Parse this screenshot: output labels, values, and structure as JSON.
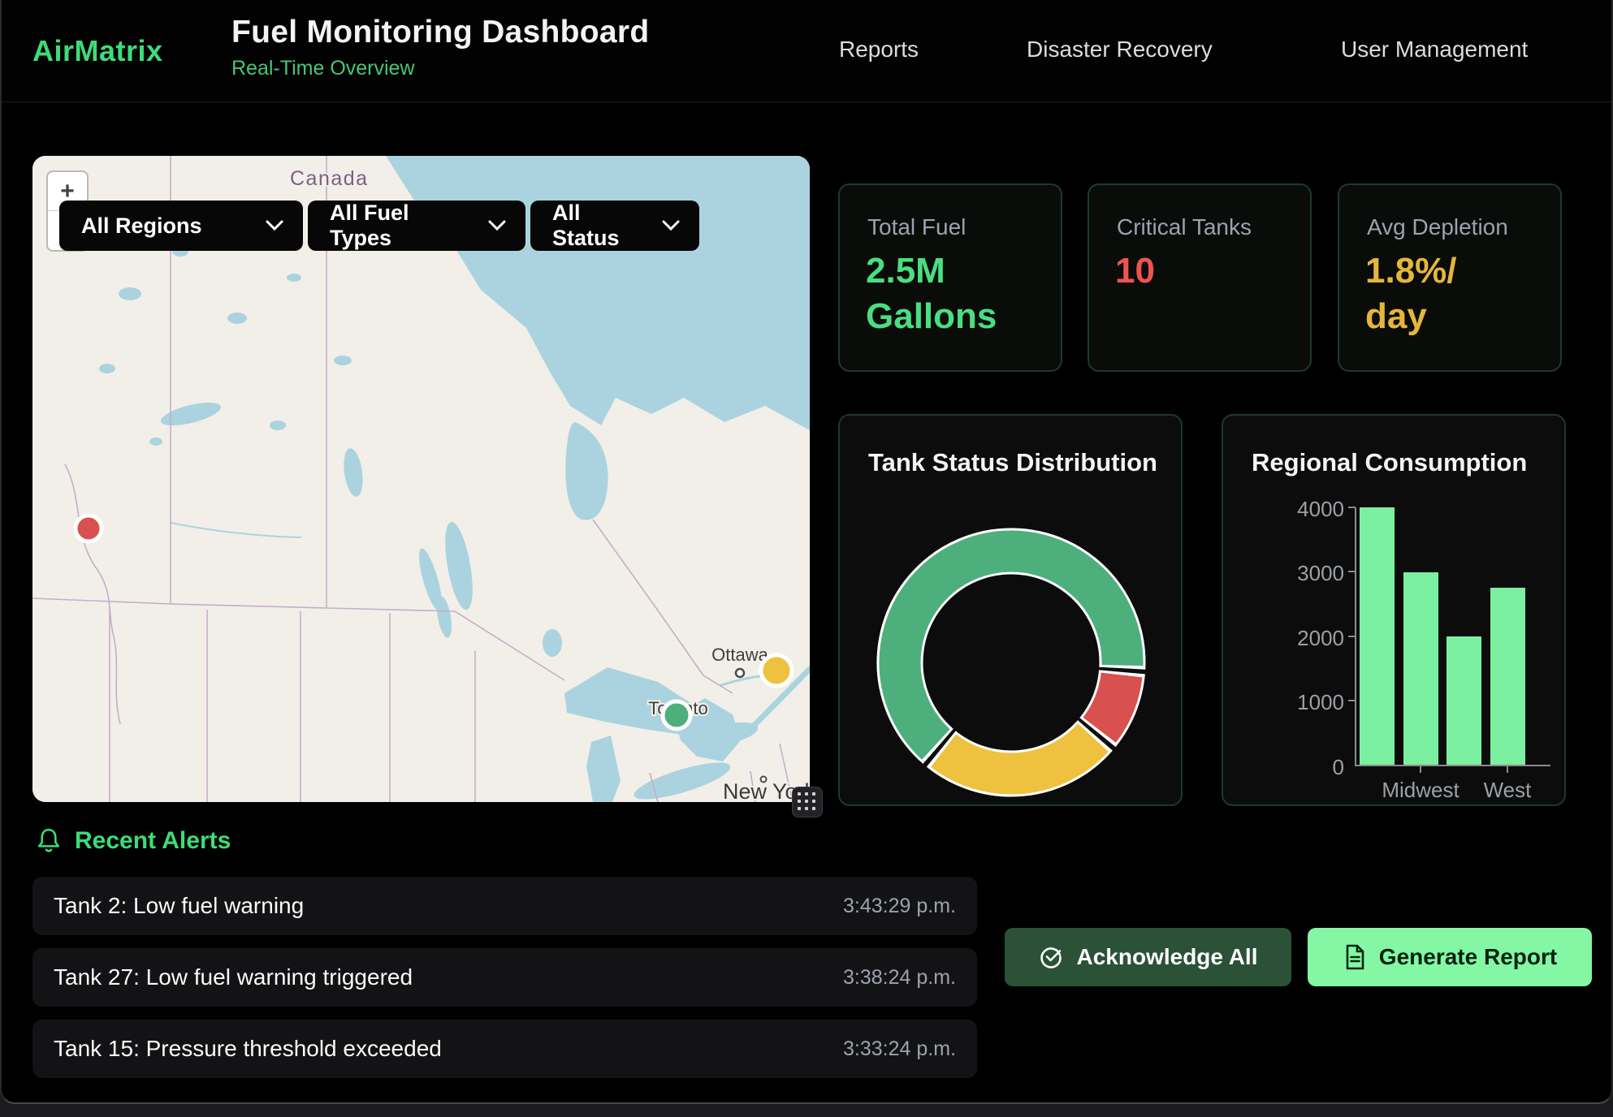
{
  "header": {
    "brand": "AirMatrix",
    "title": "Fuel Monitoring Dashboard",
    "subtitle": "Real-Time Overview",
    "nav": [
      {
        "label": "Reports"
      },
      {
        "label": "Disaster Recovery"
      },
      {
        "label": "User Management"
      }
    ]
  },
  "map": {
    "filters": [
      {
        "value": "All Regions"
      },
      {
        "value": "All Fuel Types"
      },
      {
        "value": "All Status"
      }
    ],
    "zoom_in": "+",
    "zoom_out": "−",
    "labels": {
      "country": "Canada",
      "cities": [
        "Ottawa",
        "Toronto",
        "New York"
      ]
    },
    "markers": [
      {
        "status": "critical",
        "color": "#d95050"
      },
      {
        "status": "warning",
        "color": "#eec23e"
      },
      {
        "status": "normal",
        "color": "#4daf7c"
      }
    ]
  },
  "stats": [
    {
      "label": "Total Fuel",
      "value": "2.5M Gallons",
      "color": "#4ade80"
    },
    {
      "label": "Critical Tanks",
      "value": "10",
      "color": "#ef5350"
    },
    {
      "label": "Avg Depletion",
      "value": "1.8%/ day",
      "color": "#e5b63c"
    }
  ],
  "chart_data": [
    {
      "type": "pie",
      "title": "Tank Status Distribution",
      "legend": "none",
      "donut": true,
      "start_angle_deg": 220,
      "series": [
        {
          "name": "normal",
          "value": 65,
          "color": "#4daf7c"
        },
        {
          "name": "critical",
          "value": 10,
          "color": "#d95050"
        },
        {
          "name": "warning",
          "value": 25,
          "color": "#eec23e"
        }
      ]
    },
    {
      "type": "bar",
      "title": "Regional Consumption",
      "values": [
        4000,
        3000,
        2000,
        2750
      ],
      "visible_xtick_labels": [
        "Midwest",
        "West"
      ],
      "yticks": [
        "4000",
        "3000",
        "2000",
        "1000",
        "0"
      ],
      "ylim": [
        0,
        4000
      ],
      "bar_color": "#7bf0a0",
      "grid": "off"
    }
  ],
  "alerts": {
    "title": "Recent Alerts",
    "items": [
      {
        "message": "Tank 2: Low fuel warning",
        "time": "3:43:29 p.m."
      },
      {
        "message": "Tank 27: Low fuel warning triggered",
        "time": "3:38:24 p.m."
      },
      {
        "message": "Tank 15: Pressure threshold exceeded",
        "time": "3:33:24 p.m."
      }
    ],
    "buttons": [
      {
        "label": "Acknowledge All"
      },
      {
        "label": "Generate Report"
      }
    ]
  }
}
